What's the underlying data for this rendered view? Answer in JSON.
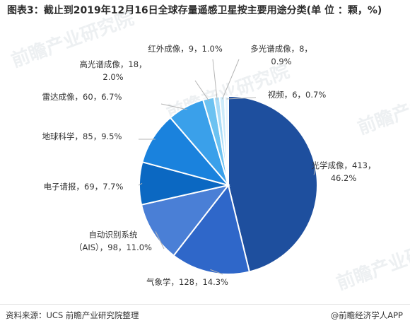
{
  "title": "图表3：截止到2019年12月16日全球存量遥感卫星按主要用途分类(单 位 ：颗，%)",
  "footer": {
    "source": "资料来源：UCS 前瞻产业研究院整理",
    "brand": "@前瞻经济学人APP"
  },
  "watermark": "前瞻产业研究院",
  "colors": {
    "光学成像": "#1e4f9e",
    "气象学": "#2f67c9",
    "自动识别系统（AIS）": "#4a7fd6",
    "电子情报": "#0b68c2",
    "地球科学": "#1a82dd",
    "雷达成像": "#3aa0ea",
    "高光谱成像": "#6cc2f1",
    "红外成像": "#a9dcf7",
    "多光谱成像": "#cdebfa",
    "视频": "#e7f5fd"
  },
  "chart_data": {
    "type": "pie",
    "start": "12 o'clock",
    "direction": "clockwise",
    "slices": [
      {
        "category": "光学成像",
        "value": 413,
        "percent": "46.2%",
        "label_lines": [
          "光学成像，413，",
          "46.2%"
        ]
      },
      {
        "category": "气象学",
        "value": 128,
        "percent": "14.3%",
        "label_lines": [
          "气象学，128，14.3%"
        ]
      },
      {
        "category": "自动识别系统（AIS）",
        "value": 98,
        "percent": "11.0%",
        "label_lines": [
          "自动识别系统",
          "（AIS），98，11.0%"
        ]
      },
      {
        "category": "电子情报",
        "value": 69,
        "percent": "7.7%",
        "label_lines": [
          "电子请报，69，7.7%"
        ]
      },
      {
        "category": "地球科学",
        "value": 85,
        "percent": "9.5%",
        "label_lines": [
          "地球科学，85，9.5%"
        ]
      },
      {
        "category": "雷达成像",
        "value": 60,
        "percent": "6.7%",
        "label_lines": [
          "雷达成像，60，6.7%"
        ]
      },
      {
        "category": "高光谱成像",
        "value": 18,
        "percent": "2.0%",
        "label_lines": [
          "高光谱成像，18，",
          "2.0%"
        ]
      },
      {
        "category": "红外成像",
        "value": 9,
        "percent": "1.0%",
        "label_lines": [
          "红外成像，9，1.0%"
        ]
      },
      {
        "category": "多光谱成像",
        "value": 8,
        "percent": "0.9%",
        "label_lines": [
          "多光谱成像，8，",
          "0.9%"
        ]
      },
      {
        "category": "视频",
        "value": 6,
        "percent": "0.7%",
        "label_lines": [
          "视频，6，0.7%"
        ]
      }
    ]
  }
}
